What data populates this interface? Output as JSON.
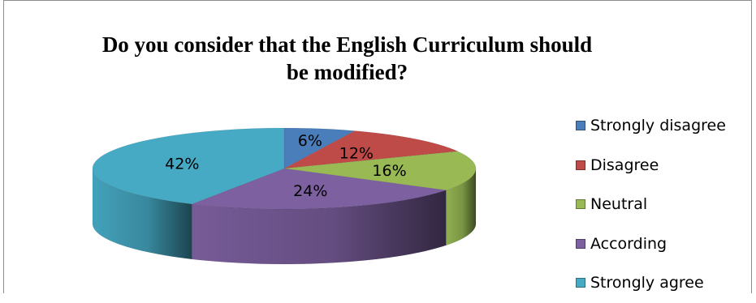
{
  "chart_data": {
    "type": "pie",
    "title_lines": [
      "Do you consider that the English Curriculum should",
      "be modified?"
    ],
    "categories": [
      "Strongly disagree",
      "Disagree",
      "Neutral",
      "According",
      "Strongly agree"
    ],
    "values": [
      6,
      12,
      16,
      24,
      42
    ],
    "labels": [
      "6%",
      "12%",
      "16%",
      "24%",
      "42%"
    ],
    "colors": [
      "#4a7ebb",
      "#be4b48",
      "#98b954",
      "#7d60a0",
      "#46aac5"
    ],
    "legend_position": "right",
    "style": "3d"
  }
}
